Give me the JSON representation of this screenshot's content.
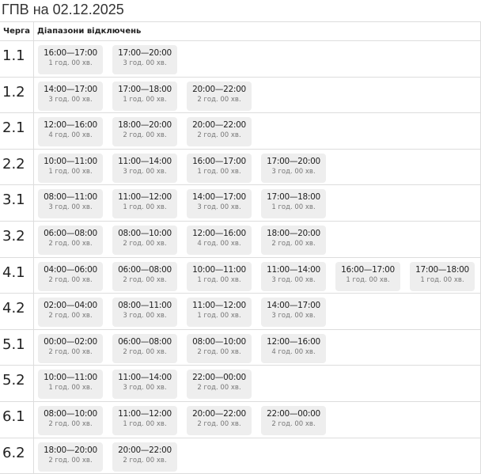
{
  "title": "ГПВ на 02.12.2025",
  "headers": {
    "queue": "Черга",
    "ranges": "Діапазони відключень"
  },
  "rows": [
    {
      "queue": "1.1",
      "ranges": [
        {
          "time": "16:00—17:00",
          "duration": "1 год. 00 хв."
        },
        {
          "time": "17:00—20:00",
          "duration": "3 год. 00 хв."
        }
      ]
    },
    {
      "queue": "1.2",
      "ranges": [
        {
          "time": "14:00—17:00",
          "duration": "3 год. 00 хв."
        },
        {
          "time": "17:00—18:00",
          "duration": "1 год. 00 хв."
        },
        {
          "time": "20:00—22:00",
          "duration": "2 год. 00 хв."
        }
      ]
    },
    {
      "queue": "2.1",
      "ranges": [
        {
          "time": "12:00—16:00",
          "duration": "4 год. 00 хв."
        },
        {
          "time": "18:00—20:00",
          "duration": "2 год. 00 хв."
        },
        {
          "time": "20:00—22:00",
          "duration": "2 год. 00 хв."
        }
      ]
    },
    {
      "queue": "2.2",
      "ranges": [
        {
          "time": "10:00—11:00",
          "duration": "1 год. 00 хв."
        },
        {
          "time": "11:00—14:00",
          "duration": "3 год. 00 хв."
        },
        {
          "time": "16:00—17:00",
          "duration": "1 год. 00 хв."
        },
        {
          "time": "17:00—20:00",
          "duration": "3 год. 00 хв."
        }
      ]
    },
    {
      "queue": "3.1",
      "ranges": [
        {
          "time": "08:00—11:00",
          "duration": "3 год. 00 хв."
        },
        {
          "time": "11:00—12:00",
          "duration": "1 год. 00 хв."
        },
        {
          "time": "14:00—17:00",
          "duration": "3 год. 00 хв."
        },
        {
          "time": "17:00—18:00",
          "duration": "1 год. 00 хв."
        }
      ]
    },
    {
      "queue": "3.2",
      "ranges": [
        {
          "time": "06:00—08:00",
          "duration": "2 год. 00 хв."
        },
        {
          "time": "08:00—10:00",
          "duration": "2 год. 00 хв."
        },
        {
          "time": "12:00—16:00",
          "duration": "4 год. 00 хв."
        },
        {
          "time": "18:00—20:00",
          "duration": "2 год. 00 хв."
        }
      ]
    },
    {
      "queue": "4.1",
      "ranges": [
        {
          "time": "04:00—06:00",
          "duration": "2 год. 00 хв."
        },
        {
          "time": "06:00—08:00",
          "duration": "2 год. 00 хв."
        },
        {
          "time": "10:00—11:00",
          "duration": "1 год. 00 хв."
        },
        {
          "time": "11:00—14:00",
          "duration": "3 год. 00 хв."
        },
        {
          "time": "16:00—17:00",
          "duration": "1 год. 00 хв."
        },
        {
          "time": "17:00—18:00",
          "duration": "1 год. 00 хв."
        }
      ]
    },
    {
      "queue": "4.2",
      "ranges": [
        {
          "time": "02:00—04:00",
          "duration": "2 год. 00 хв."
        },
        {
          "time": "08:00—11:00",
          "duration": "3 год. 00 хв."
        },
        {
          "time": "11:00—12:00",
          "duration": "1 год. 00 хв."
        },
        {
          "time": "14:00—17:00",
          "duration": "3 год. 00 хв."
        }
      ]
    },
    {
      "queue": "5.1",
      "ranges": [
        {
          "time": "00:00—02:00",
          "duration": "2 год. 00 хв."
        },
        {
          "time": "06:00—08:00",
          "duration": "2 год. 00 хв."
        },
        {
          "time": "08:00—10:00",
          "duration": "2 год. 00 хв."
        },
        {
          "time": "12:00—16:00",
          "duration": "4 год. 00 хв."
        }
      ]
    },
    {
      "queue": "5.2",
      "ranges": [
        {
          "time": "10:00—11:00",
          "duration": "1 год. 00 хв."
        },
        {
          "time": "11:00—14:00",
          "duration": "3 год. 00 хв."
        },
        {
          "time": "22:00—00:00",
          "duration": "2 год. 00 хв."
        }
      ]
    },
    {
      "queue": "6.1",
      "ranges": [
        {
          "time": "08:00—10:00",
          "duration": "2 год. 00 хв."
        },
        {
          "time": "11:00—12:00",
          "duration": "1 год. 00 хв."
        },
        {
          "time": "20:00—22:00",
          "duration": "2 год. 00 хв."
        },
        {
          "time": "22:00—00:00",
          "duration": "2 год. 00 хв."
        }
      ]
    },
    {
      "queue": "6.2",
      "ranges": [
        {
          "time": "18:00—20:00",
          "duration": "2 год. 00 хв."
        },
        {
          "time": "20:00—22:00",
          "duration": "2 год. 00 хв."
        }
      ]
    }
  ]
}
